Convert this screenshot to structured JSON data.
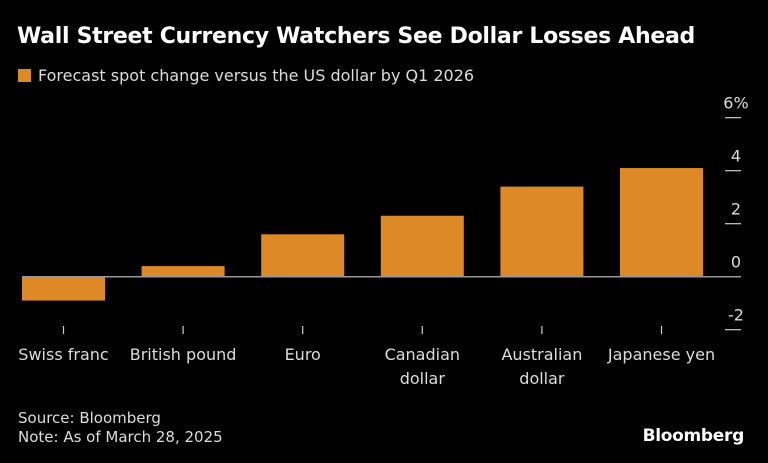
{
  "title": "Wall Street Currency Watchers See Dollar Losses Ahead",
  "source": "Source: Bloomberg",
  "note": "Note: As of March 28, 2025",
  "logo": "Bloomberg",
  "colors": {
    "bar": "#DD8A26",
    "zero_line": "#999999",
    "background": "#000000"
  },
  "chart_data": {
    "type": "bar",
    "title": "Wall Street Currency Watchers See Dollar Losses Ahead",
    "categories": [
      [
        "Swiss franc"
      ],
      [
        "British pound"
      ],
      [
        "Euro"
      ],
      [
        "Canadian",
        "dollar"
      ],
      [
        "Australian",
        "dollar"
      ],
      [
        "Japanese yen"
      ]
    ],
    "series": [
      {
        "name": "Forecast spot change versus the US dollar by Q1 2026",
        "values": [
          -0.9,
          0.4,
          1.6,
          2.3,
          3.4,
          4.1
        ]
      }
    ],
    "ylim": [
      -2,
      6
    ],
    "yticks": [
      6,
      4,
      2,
      0,
      -2
    ],
    "ytick_labels": [
      "6%",
      "4",
      "2",
      "0",
      "-2"
    ],
    "yaxis_position": "right",
    "grid": false,
    "legend_position": "top-left"
  }
}
